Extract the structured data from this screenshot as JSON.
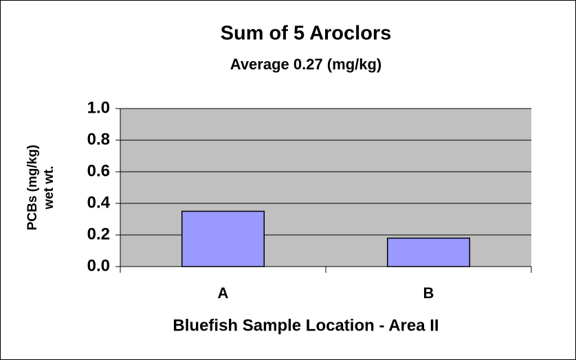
{
  "chart_data": {
    "type": "bar",
    "title": "Sum of 5 Aroclors",
    "subtitle": "Average 0.27 (mg/kg)",
    "ylabel": [
      "PCBs (mg/kg)",
      "wet wt."
    ],
    "xlabel": "Bluefish Sample Location - Area II",
    "categories": [
      "A",
      "B"
    ],
    "values": [
      0.35,
      0.18
    ],
    "color": "#9999ff",
    "ylim": [
      0,
      1
    ],
    "yticks": [
      {
        "value": 0,
        "label": "0.0"
      },
      0.2,
      0.4,
      0.6,
      0.8,
      {
        "value": 1,
        "label": "1.0"
      }
    ],
    "grid": true
  }
}
